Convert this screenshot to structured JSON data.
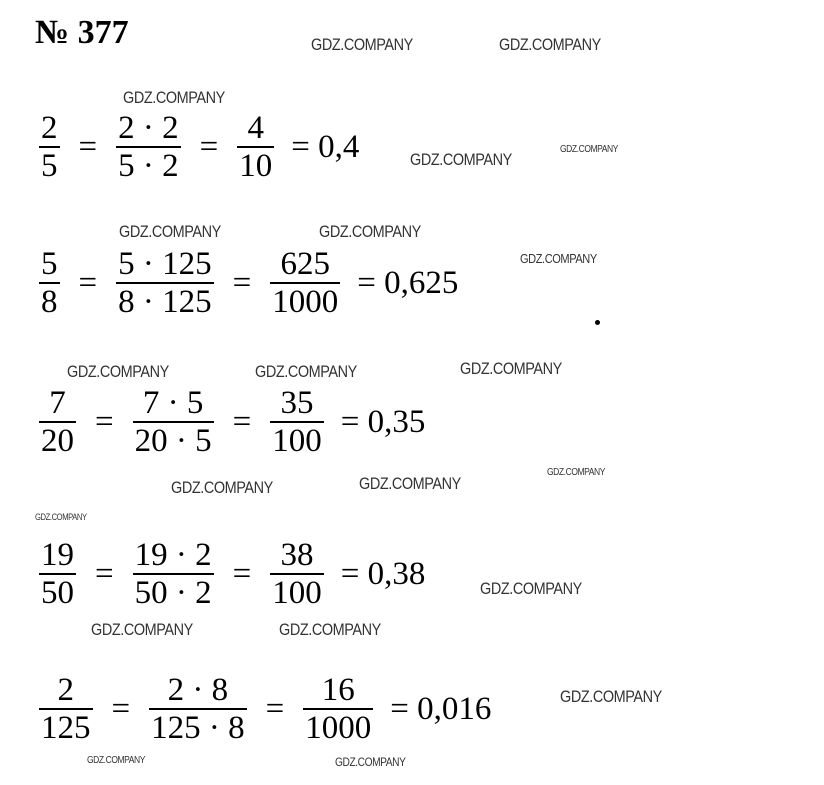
{
  "title": "№ 377",
  "watermark": "GDZ.COMPANY",
  "rows": [
    {
      "f1": {
        "num": "2",
        "den": "5"
      },
      "f2": {
        "num": "2 · 2",
        "den": "5 · 2"
      },
      "f3": {
        "num": "4",
        "den": "10"
      },
      "result": "= 0,4"
    },
    {
      "f1": {
        "num": "5",
        "den": "8"
      },
      "f2": {
        "num": "5 · 125",
        "den": "8 · 125"
      },
      "f3": {
        "num": "625",
        "den": "1000"
      },
      "result": "= 0,625"
    },
    {
      "f1": {
        "num": "7",
        "den": "20"
      },
      "f2": {
        "num": "7 · 5",
        "den": "20 · 5"
      },
      "f3": {
        "num": "35",
        "den": "100"
      },
      "result": "= 0,35"
    },
    {
      "f1": {
        "num": "19",
        "den": "50"
      },
      "f2": {
        "num": "19 · 2",
        "den": "50 · 2"
      },
      "f3": {
        "num": "38",
        "den": "100"
      },
      "result": "= 0,38"
    },
    {
      "f1": {
        "num": "2",
        "den": "125"
      },
      "f2": {
        "num": "2 · 8",
        "den": "125 · 8"
      },
      "f3": {
        "num": "16",
        "den": "1000"
      },
      "result": "= 0,016"
    }
  ],
  "equals": "="
}
